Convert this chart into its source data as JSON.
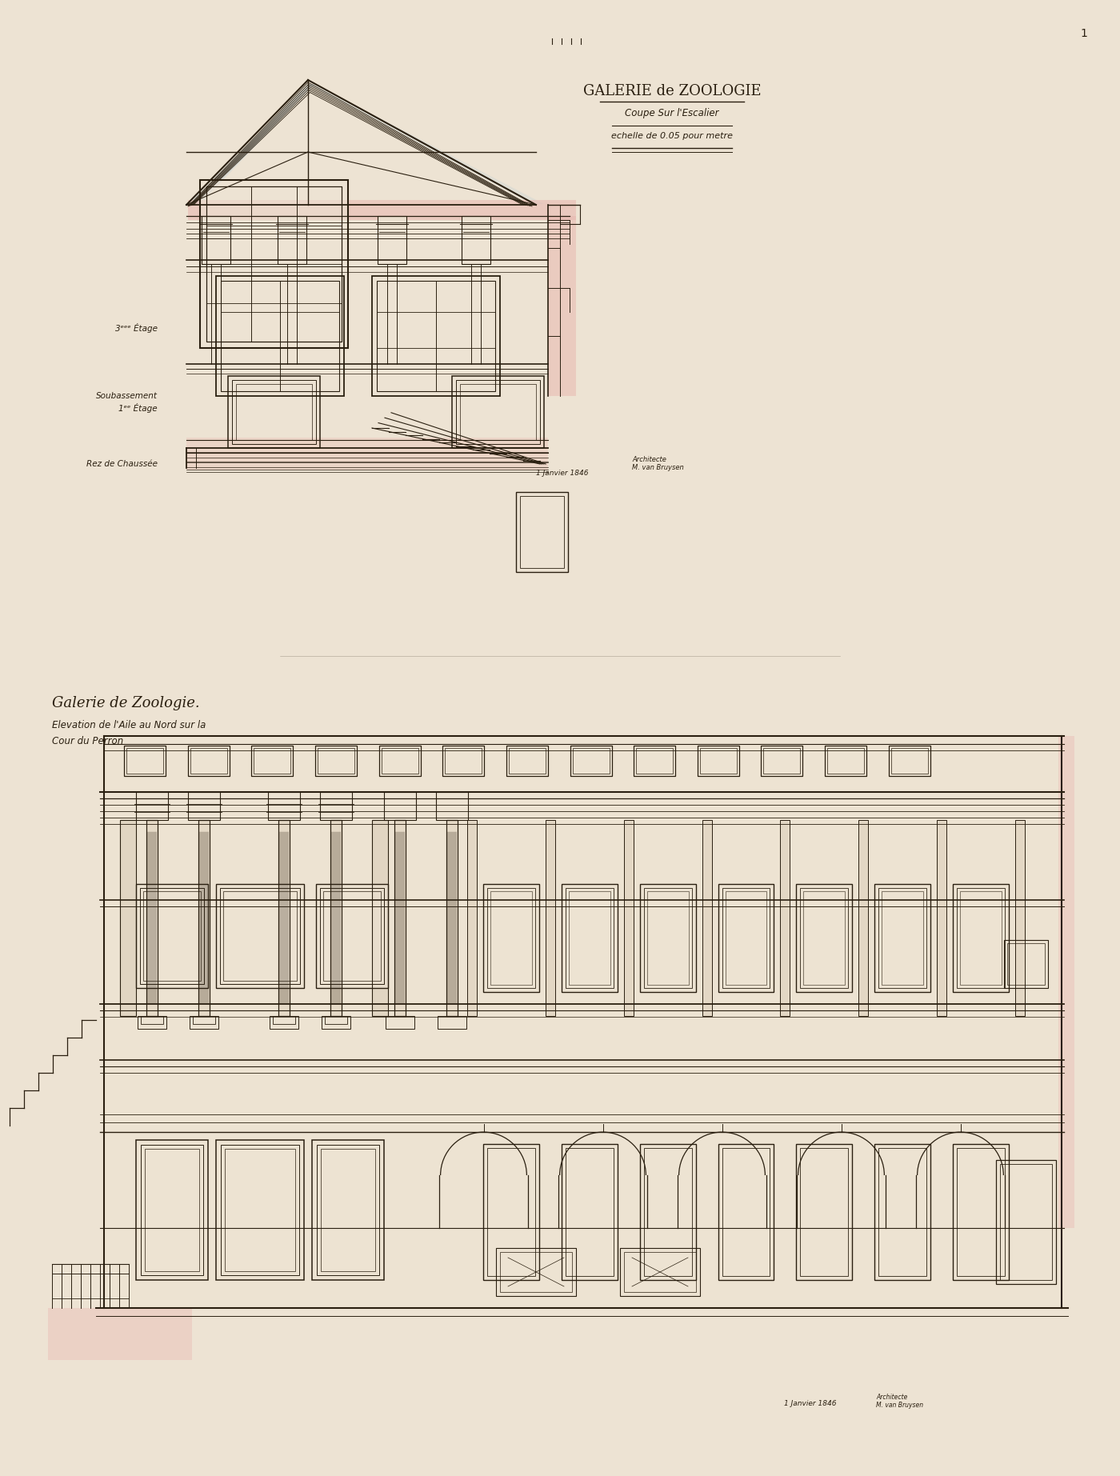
{
  "background_color": "#ede3d3",
  "line_color": "#2a1f10",
  "pink_color": "#d4a0a0",
  "light_pink": "#e8b8b0",
  "blue_tint": "#b8ccd4",
  "title1_main": "GALERIE de ZOOLOGIE",
  "title1_sub1": "Coupe Sur l'Escalier",
  "title1_sub2": "echelle de 0.05 pour metre",
  "title2_main": "Galerie de Zoologie.",
  "title2_sub1": "Elevation de l'Aile au Nord sur la",
  "title2_sub2": "Cour du Perron",
  "label_3etage": "3ᵉᵉᵉ Étage",
  "label_1etage": "1ᵉᵉ Étage",
  "label_pdc": "Rez de Chaussée",
  "label_sous": "Soubassement",
  "date_text": "1 Janvier 1846",
  "architect_text": "Architecte\nM. van Bruysen",
  "fig_width": 14.0,
  "fig_height": 18.45
}
